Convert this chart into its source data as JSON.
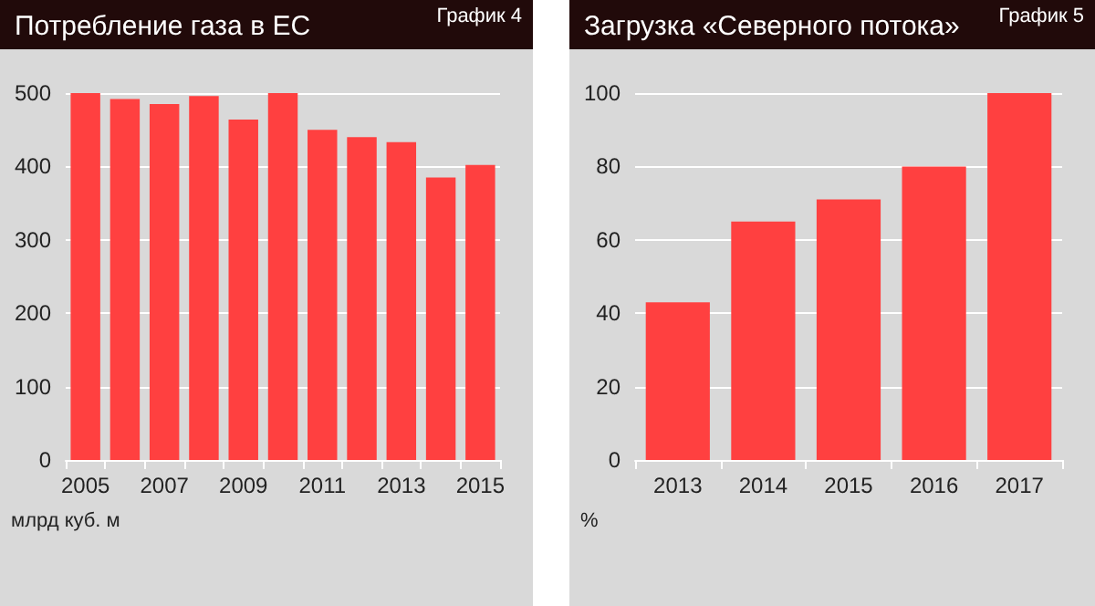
{
  "chart_data": [
    {
      "type": "bar",
      "title": "Потребление газа в ЕС",
      "subtitle": "График 4",
      "ylabel": "млрд куб. м",
      "categories": [
        "2005",
        null,
        "2007",
        null,
        "2009",
        null,
        "2011",
        null,
        "2013",
        null,
        "2015"
      ],
      "values": [
        500,
        492,
        485,
        496,
        464,
        500,
        450,
        440,
        433,
        385,
        402
      ],
      "color": "#ff4040",
      "ylim": [
        0,
        500
      ],
      "yticks": [
        0,
        100,
        200,
        300,
        400,
        500
      ],
      "grid": "y"
    },
    {
      "type": "bar",
      "title": "Загрузка «Северного потока»",
      "subtitle": "График 5",
      "ylabel": "%",
      "categories": [
        "2013",
        "2014",
        "2015",
        "2016",
        "2017"
      ],
      "values": [
        43,
        65,
        71,
        80,
        100
      ],
      "color": "#ff4040",
      "ylim": [
        0,
        100
      ],
      "yticks": [
        0,
        20,
        40,
        60,
        80,
        100
      ],
      "grid": "y"
    }
  ]
}
